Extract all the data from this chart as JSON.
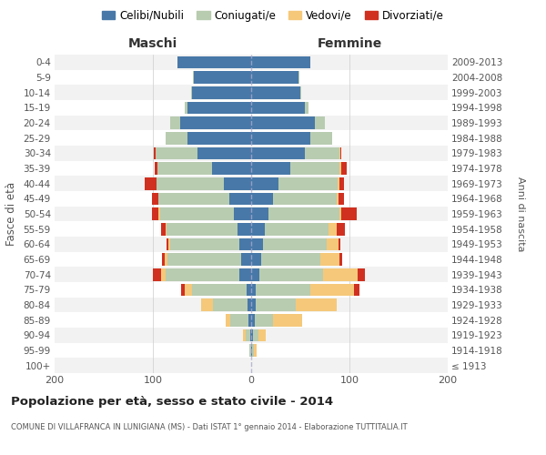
{
  "age_groups": [
    "100+",
    "95-99",
    "90-94",
    "85-89",
    "80-84",
    "75-79",
    "70-74",
    "65-69",
    "60-64",
    "55-59",
    "50-54",
    "45-49",
    "40-44",
    "35-39",
    "30-34",
    "25-29",
    "20-24",
    "15-19",
    "10-14",
    "5-9",
    "0-4"
  ],
  "birth_years": [
    "≤ 1913",
    "1914-1918",
    "1919-1923",
    "1924-1928",
    "1929-1933",
    "1934-1938",
    "1939-1943",
    "1944-1948",
    "1949-1953",
    "1954-1958",
    "1959-1963",
    "1964-1968",
    "1969-1973",
    "1974-1978",
    "1979-1983",
    "1984-1988",
    "1989-1993",
    "1994-1998",
    "1999-2003",
    "2004-2008",
    "2009-2013"
  ],
  "maschi": {
    "celibi": [
      0,
      0,
      1,
      3,
      4,
      5,
      12,
      10,
      12,
      14,
      18,
      22,
      28,
      40,
      55,
      65,
      72,
      65,
      60,
      58,
      75
    ],
    "coniugati": [
      0,
      2,
      5,
      18,
      35,
      55,
      75,
      75,
      70,
      72,
      75,
      72,
      68,
      55,
      42,
      22,
      10,
      3,
      1,
      1,
      0
    ],
    "vedovi": [
      0,
      0,
      2,
      5,
      12,
      8,
      5,
      3,
      2,
      1,
      1,
      0,
      0,
      0,
      0,
      0,
      0,
      0,
      0,
      0,
      0
    ],
    "divorziati": [
      0,
      0,
      0,
      0,
      0,
      3,
      8,
      3,
      2,
      5,
      7,
      7,
      12,
      3,
      2,
      0,
      0,
      0,
      0,
      0,
      0
    ]
  },
  "femmine": {
    "nubili": [
      0,
      1,
      2,
      4,
      5,
      5,
      8,
      10,
      12,
      14,
      18,
      22,
      28,
      40,
      55,
      60,
      65,
      55,
      50,
      48,
      60
    ],
    "coniugate": [
      0,
      2,
      5,
      18,
      40,
      55,
      65,
      60,
      65,
      65,
      72,
      65,
      60,
      50,
      35,
      22,
      10,
      3,
      1,
      1,
      0
    ],
    "vedove": [
      0,
      3,
      8,
      30,
      42,
      45,
      35,
      20,
      12,
      8,
      2,
      2,
      2,
      2,
      1,
      0,
      0,
      0,
      0,
      0,
      0
    ],
    "divorziate": [
      0,
      0,
      0,
      0,
      0,
      5,
      8,
      3,
      2,
      8,
      15,
      5,
      4,
      5,
      1,
      0,
      0,
      0,
      0,
      0,
      0
    ]
  },
  "colors": {
    "celibi_nubili": "#4878a8",
    "coniugati_e": "#b8ccb0",
    "vedovi_e": "#f5c87a",
    "divorziati_e": "#d03020"
  },
  "xlabel_left": "Maschi",
  "xlabel_right": "Femmine",
  "ylabel_left": "Fasce di età",
  "ylabel_right": "Anni di nascita",
  "title": "Popolazione per età, sesso e stato civile - 2014",
  "subtitle": "COMUNE DI VILLAFRANCA IN LUNIGIANA (MS) - Dati ISTAT 1° gennaio 2014 - Elaborazione TUTTITALIA.IT",
  "xlim": 200,
  "legend_labels": [
    "Celibi/Nubili",
    "Coniugati/e",
    "Vedovi/e",
    "Divorziati/e"
  ],
  "bg_color": "#ffffff",
  "grid_color": "#cccccc"
}
